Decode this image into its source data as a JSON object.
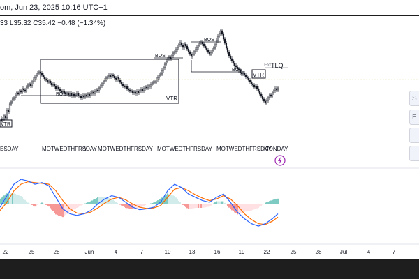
{
  "header": {
    "title": "om, Jun 23, 2025 10:16 UTC+1",
    "ohlc": [
      "33",
      "L35.32",
      "C35.42",
      "−0.48 (−1.34%)"
    ]
  },
  "annotations": {
    "bos": [
      "BOS",
      "BOS",
      "BOS",
      "BOS"
    ],
    "vtr": [
      "VTR",
      "VTR",
      "VTR"
    ],
    "tlq": "TLQ",
    "ext": "Ext"
  },
  "session_labels": {
    "monday": "MONDAY",
    "groups": [
      "ESDAY",
      "MOTWEDTHFRSDAY",
      "MOTWEDTHFRSDAY",
      "MOTWEDTHFRSDAY",
      "MOTWEDTHFRSDAY"
    ],
    "extra": "Y"
  },
  "side_buttons": [
    "S",
    "E",
    "",
    ""
  ],
  "colors": {
    "bull_hist_strong": "#26a69a",
    "bull_hist_weak": "#b2dfdb",
    "bear_hist_strong": "#ef5350",
    "bear_hist_weak": "#ffcdd2",
    "macd_line": "#2962ff",
    "signal_line": "#ff6d00",
    "candle": "#131722",
    "background": "#ffffff",
    "dark": "#1e1e1e"
  },
  "chart_data": {
    "type": "line",
    "title": "",
    "x_ticks": [
      "22",
      "25",
      "28",
      "Jun",
      "4",
      "7",
      "10",
      "13",
      "16",
      "19",
      "22",
      "25",
      "28",
      "Jul",
      "4",
      "7"
    ],
    "price_series": [
      [
        0,
        38.0
      ],
      [
        2,
        37.6
      ],
      [
        4,
        37.9
      ],
      [
        6,
        38.4
      ],
      [
        8,
        38.1
      ],
      [
        10,
        39.2
      ],
      [
        12,
        39.0
      ],
      [
        14,
        40.1
      ],
      [
        16,
        40.4
      ],
      [
        18,
        40.8
      ],
      [
        20,
        41.0
      ],
      [
        22,
        41.3
      ],
      [
        24,
        41.7
      ],
      [
        26,
        41.5
      ],
      [
        28,
        42.0
      ],
      [
        30,
        41.8
      ],
      [
        32,
        42.3
      ],
      [
        34,
        42.1
      ],
      [
        36,
        41.9
      ],
      [
        38,
        42.5
      ],
      [
        40,
        42.8
      ],
      [
        42,
        43.0
      ],
      [
        44,
        42.7
      ],
      [
        46,
        43.3
      ],
      [
        48,
        43.6
      ],
      [
        50,
        43.9
      ],
      [
        52,
        44.2
      ],
      [
        54,
        44.5
      ],
      [
        56,
        44.7
      ],
      [
        58,
        44.5
      ],
      [
        60,
        44.2
      ],
      [
        62,
        44.0
      ],
      [
        64,
        43.7
      ],
      [
        66,
        43.5
      ],
      [
        68,
        43.2
      ],
      [
        70,
        43.4
      ],
      [
        72,
        43.1
      ],
      [
        74,
        42.8
      ],
      [
        76,
        42.9
      ],
      [
        78,
        42.6
      ],
      [
        80,
        42.3
      ],
      [
        82,
        42.5
      ],
      [
        84,
        42.2
      ],
      [
        86,
        42.0
      ],
      [
        88,
        41.8
      ],
      [
        90,
        41.9
      ],
      [
        92,
        41.6
      ],
      [
        94,
        41.5
      ],
      [
        96,
        41.7
      ],
      [
        98,
        41.4
      ],
      [
        100,
        41.6
      ],
      [
        102,
        41.3
      ],
      [
        104,
        41.5
      ],
      [
        106,
        41.2
      ],
      [
        108,
        41.4
      ],
      [
        110,
        41.6
      ],
      [
        112,
        41.3
      ],
      [
        114,
        41.2
      ],
      [
        116,
        41.0
      ],
      [
        118,
        41.3
      ],
      [
        120,
        41.1
      ],
      [
        122,
        41.4
      ],
      [
        124,
        41.2
      ],
      [
        126,
        41.5
      ],
      [
        128,
        41.3
      ],
      [
        130,
        41.6
      ],
      [
        132,
        41.8
      ],
      [
        134,
        41.6
      ],
      [
        136,
        41.9
      ],
      [
        138,
        42.1
      ],
      [
        140,
        42.0
      ],
      [
        142,
        42.4
      ],
      [
        144,
        42.7
      ],
      [
        146,
        43.0
      ],
      [
        148,
        43.3
      ],
      [
        150,
        43.5
      ],
      [
        152,
        43.8
      ],
      [
        154,
        44.0
      ],
      [
        156,
        44.2
      ],
      [
        158,
        44.0
      ],
      [
        160,
        44.3
      ],
      [
        162,
        44.1
      ],
      [
        164,
        43.8
      ],
      [
        166,
        43.6
      ],
      [
        168,
        43.9
      ],
      [
        170,
        43.5
      ],
      [
        172,
        43.2
      ],
      [
        174,
        42.9
      ],
      [
        176,
        42.7
      ],
      [
        178,
        42.5
      ],
      [
        180,
        42.6
      ],
      [
        182,
        42.3
      ],
      [
        184,
        42.1
      ],
      [
        186,
        41.9
      ],
      [
        188,
        42.0
      ],
      [
        190,
        41.7
      ],
      [
        192,
        41.8
      ],
      [
        194,
        41.6
      ],
      [
        196,
        41.9
      ],
      [
        198,
        41.7
      ],
      [
        200,
        42.0
      ],
      [
        202,
        42.2
      ],
      [
        204,
        42.0
      ],
      [
        206,
        42.3
      ],
      [
        208,
        42.5
      ],
      [
        210,
        42.4
      ],
      [
        212,
        42.7
      ],
      [
        214,
        42.6
      ],
      [
        216,
        42.9
      ],
      [
        218,
        43.1
      ],
      [
        220,
        43.3
      ],
      [
        222,
        43.2
      ],
      [
        224,
        43.6
      ],
      [
        226,
        43.9
      ],
      [
        228,
        44.2
      ],
      [
        230,
        44.4
      ],
      [
        232,
        44.9
      ],
      [
        234,
        45.3
      ],
      [
        236,
        45.8
      ],
      [
        238,
        46.2
      ],
      [
        240,
        46.5
      ],
      [
        242,
        46.8
      ],
      [
        244,
        46.6
      ],
      [
        246,
        47.0
      ],
      [
        248,
        47.4
      ],
      [
        250,
        47.6
      ],
      [
        252,
        47.9
      ],
      [
        254,
        48.2
      ],
      [
        256,
        48.6
      ],
      [
        258,
        48.9
      ],
      [
        260,
        48.5
      ],
      [
        262,
        48.2
      ],
      [
        264,
        48.7
      ],
      [
        266,
        48.4
      ],
      [
        268,
        48.0
      ],
      [
        270,
        47.6
      ],
      [
        272,
        47.2
      ],
      [
        274,
        46.9
      ],
      [
        276,
        47.2
      ],
      [
        278,
        47.6
      ],
      [
        280,
        47.9
      ],
      [
        282,
        48.2
      ],
      [
        284,
        48.5
      ],
      [
        286,
        48.8
      ],
      [
        288,
        49.0
      ],
      [
        290,
        48.7
      ],
      [
        292,
        48.4
      ],
      [
        294,
        48.1
      ],
      [
        296,
        47.8
      ],
      [
        298,
        47.5
      ],
      [
        300,
        47.2
      ],
      [
        302,
        47.5
      ],
      [
        304,
        47.8
      ],
      [
        306,
        48.1
      ],
      [
        308,
        48.6
      ],
      [
        310,
        49.2
      ],
      [
        312,
        49.8
      ],
      [
        314,
        50.2
      ],
      [
        316,
        50.6
      ],
      [
        318,
        50.1
      ],
      [
        320,
        49.4
      ],
      [
        322,
        48.8
      ],
      [
        324,
        48.1
      ],
      [
        326,
        47.5
      ],
      [
        328,
        47.0
      ],
      [
        330,
        46.6
      ],
      [
        332,
        46.3
      ],
      [
        334,
        45.9
      ],
      [
        336,
        45.6
      ],
      [
        338,
        45.4
      ],
      [
        340,
        45.1
      ],
      [
        342,
        44.9
      ],
      [
        344,
        44.6
      ],
      [
        346,
        44.4
      ],
      [
        348,
        44.5
      ],
      [
        350,
        44.2
      ],
      [
        352,
        44.0
      ],
      [
        354,
        43.8
      ],
      [
        356,
        43.5
      ],
      [
        358,
        43.3
      ],
      [
        360,
        43.0
      ],
      [
        362,
        42.8
      ],
      [
        364,
        42.5
      ],
      [
        366,
        42.6
      ],
      [
        368,
        42.3
      ],
      [
        370,
        41.9
      ],
      [
        372,
        41.5
      ],
      [
        374,
        41.2
      ],
      [
        376,
        40.8
      ],
      [
        378,
        40.5
      ],
      [
        380,
        40.2
      ],
      [
        382,
        40.6
      ],
      [
        384,
        41.0
      ],
      [
        386,
        41.4
      ],
      [
        388,
        41.2
      ],
      [
        390,
        41.7
      ],
      [
        392,
        42.0
      ],
      [
        394,
        42.3
      ],
      [
        396,
        42.1
      ],
      [
        398,
        42.4
      ]
    ],
    "macd_series": {
      "name": "",
      "values": [
        [
          0,
          -0.2
        ],
        [
          10,
          0.5
        ],
        [
          20,
          1.2
        ],
        [
          30,
          1.5
        ],
        [
          40,
          1.4
        ],
        [
          50,
          1.2
        ],
        [
          60,
          1.3
        ],
        [
          70,
          1.1
        ],
        [
          80,
          0.4
        ],
        [
          90,
          -0.3
        ],
        [
          100,
          -0.6
        ],
        [
          110,
          -0.7
        ],
        [
          120,
          -0.6
        ],
        [
          130,
          -0.4
        ],
        [
          140,
          0.0
        ],
        [
          150,
          0.3
        ],
        [
          160,
          0.5
        ],
        [
          170,
          0.4
        ],
        [
          180,
          0.1
        ],
        [
          190,
          -0.2
        ],
        [
          200,
          -0.35
        ],
        [
          210,
          -0.3
        ],
        [
          220,
          -0.2
        ],
        [
          230,
          0.1
        ],
        [
          240,
          0.8
        ],
        [
          250,
          1.2
        ],
        [
          260,
          1.0
        ],
        [
          270,
          0.6
        ],
        [
          280,
          0.4
        ],
        [
          290,
          0.2
        ],
        [
          300,
          0.1
        ],
        [
          310,
          0.4
        ],
        [
          320,
          0.6
        ],
        [
          330,
          0.1
        ],
        [
          340,
          -0.5
        ],
        [
          350,
          -0.9
        ],
        [
          360,
          -1.2
        ],
        [
          370,
          -1.35
        ],
        [
          380,
          -1.2
        ],
        [
          390,
          -0.9
        ],
        [
          398,
          -0.6
        ]
      ]
    },
    "signal_series": {
      "name": "",
      "values": [
        [
          0,
          -0.4
        ],
        [
          10,
          0.1
        ],
        [
          20,
          0.8
        ],
        [
          30,
          1.2
        ],
        [
          40,
          1.35
        ],
        [
          50,
          1.3
        ],
        [
          60,
          1.25
        ],
        [
          70,
          1.2
        ],
        [
          80,
          0.8
        ],
        [
          90,
          0.2
        ],
        [
          100,
          -0.3
        ],
        [
          110,
          -0.55
        ],
        [
          120,
          -0.6
        ],
        [
          130,
          -0.5
        ],
        [
          140,
          -0.25
        ],
        [
          150,
          0.05
        ],
        [
          160,
          0.3
        ],
        [
          170,
          0.4
        ],
        [
          180,
          0.25
        ],
        [
          190,
          0.0
        ],
        [
          200,
          -0.2
        ],
        [
          210,
          -0.28
        ],
        [
          220,
          -0.25
        ],
        [
          230,
          -0.1
        ],
        [
          240,
          0.4
        ],
        [
          250,
          0.9
        ],
        [
          260,
          1.0
        ],
        [
          270,
          0.8
        ],
        [
          280,
          0.55
        ],
        [
          290,
          0.35
        ],
        [
          300,
          0.2
        ],
        [
          310,
          0.3
        ],
        [
          320,
          0.5
        ],
        [
          330,
          0.3
        ],
        [
          340,
          -0.1
        ],
        [
          350,
          -0.6
        ],
        [
          360,
          -0.95
        ],
        [
          370,
          -1.2
        ],
        [
          380,
          -1.25
        ],
        [
          390,
          -1.05
        ],
        [
          398,
          -0.8
        ]
      ]
    }
  }
}
